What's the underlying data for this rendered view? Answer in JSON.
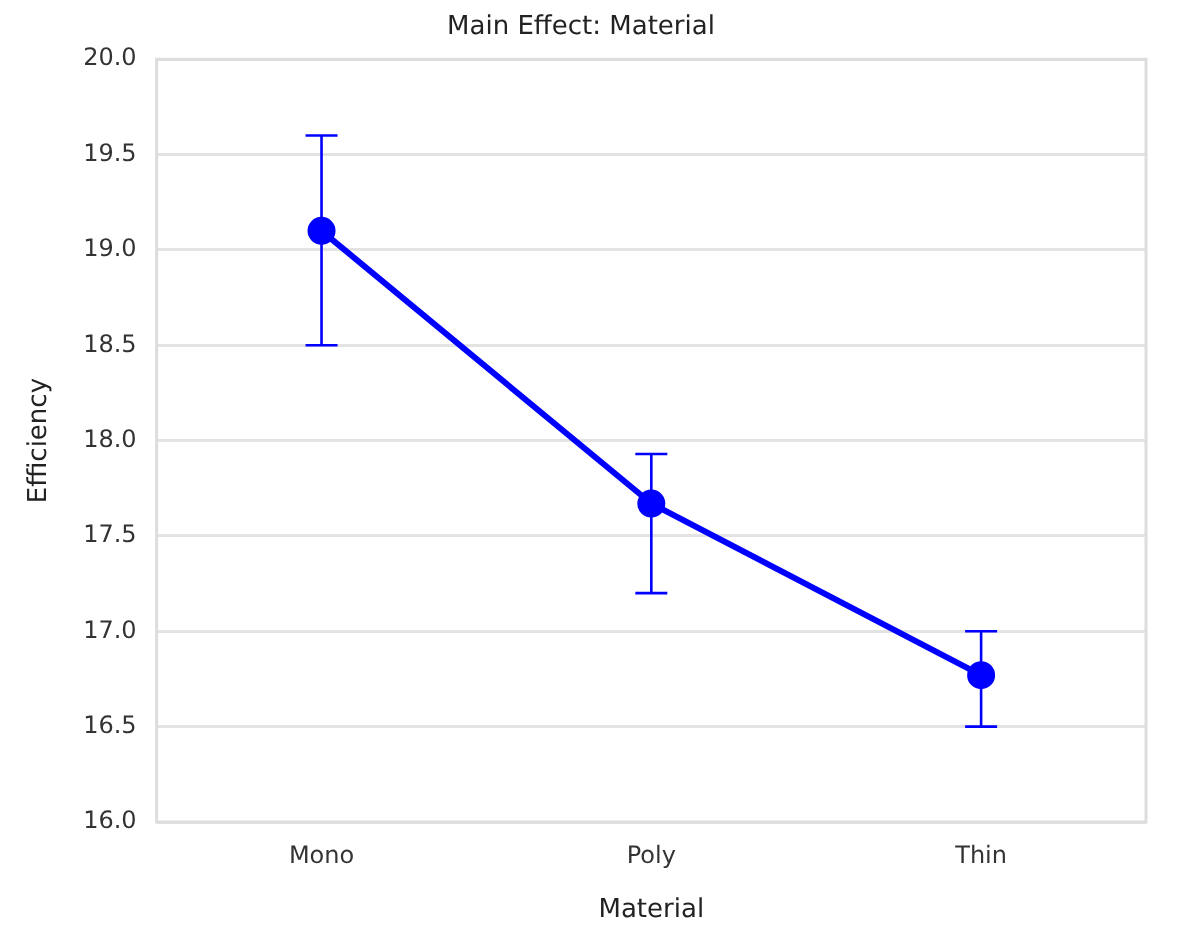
{
  "chart_data": {
    "type": "line",
    "title": "Main Effect: Material",
    "xlabel": "Material",
    "ylabel": "Efficiency",
    "categories": [
      "Mono",
      "Poly",
      "Thin"
    ],
    "series": [
      {
        "color": "#0000ff",
        "values": [
          19.1,
          17.67,
          16.77
        ],
        "errors": [
          [
            18.5,
            19.6
          ],
          [
            17.2,
            17.93
          ],
          [
            16.5,
            17.0
          ]
        ]
      }
    ],
    "ylim": [
      16.0,
      20.0
    ],
    "yticks": [
      {
        "value": 16,
        "label": "16.0"
      },
      {
        "value": 16.5,
        "label": "16.5"
      },
      {
        "value": 17,
        "label": "17.0"
      },
      {
        "value": 17.5,
        "label": "17.5"
      },
      {
        "value": 18,
        "label": "18.0"
      },
      {
        "value": 18.5,
        "label": "18.5"
      },
      {
        "value": 19,
        "label": "19.0"
      },
      {
        "value": 19.5,
        "label": "19.5"
      },
      {
        "value": 20,
        "label": "20.0"
      }
    ],
    "grid": "y",
    "legend": false,
    "marker": "circle",
    "line_style": "solid"
  }
}
